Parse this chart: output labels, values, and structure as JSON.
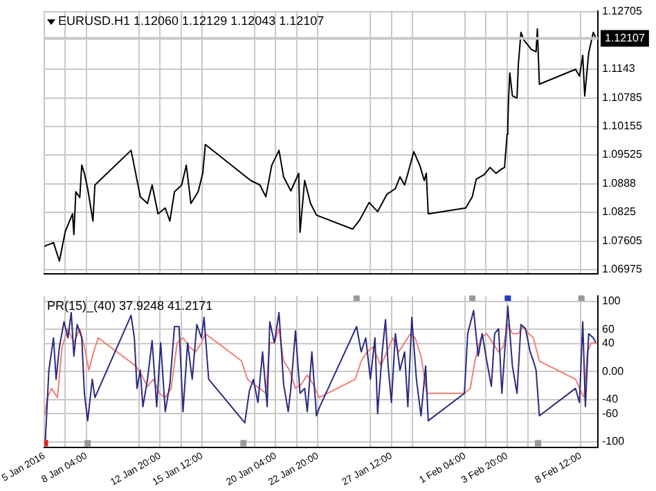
{
  "chart_data": [
    {
      "type": "line",
      "title": "EURUSD.H1 1.12060 1.12129 1.12043 1.12107",
      "xlim": [
        "2016-01-05T12:00",
        "2016-02-09T14:00"
      ],
      "ylim": [
        1.0687,
        1.1272
      ],
      "xticks": [
        {
          "value": "2016-01-05T12:00",
          "label": null
        },
        {
          "value": "2016-01-06T20:00",
          "label": null
        },
        {
          "value": "2016-01-08T04:00",
          "label": null
        },
        {
          "value": "2016-01-11T12:00",
          "label": null
        },
        {
          "value": "2016-01-12T20:00",
          "label": null
        },
        {
          "value": "2016-01-14T04:00",
          "label": null
        },
        {
          "value": "2016-01-15T12:00",
          "label": null
        },
        {
          "value": "2016-01-18T20:00",
          "label": null
        },
        {
          "value": "2016-01-20T04:00",
          "label": null
        },
        {
          "value": "2016-01-21T12:00",
          "label": null
        },
        {
          "value": "2016-01-22T20:00",
          "label": null
        },
        {
          "value": "2016-01-26T04:00",
          "label": null
        },
        {
          "value": "2016-01-27T12:00",
          "label": null
        },
        {
          "value": "2016-01-28T20:00",
          "label": null
        },
        {
          "value": "2016-02-01T04:00",
          "label": null
        },
        {
          "value": "2016-02-02T12:00",
          "label": null
        },
        {
          "value": "2016-02-03T20:00",
          "label": null
        },
        {
          "value": "2016-02-05T04:00",
          "label": null
        },
        {
          "value": "2016-02-08T12:00",
          "label": null
        }
      ],
      "yticks": [
        1.06975,
        1.07605,
        1.0825,
        1.0888,
        1.09525,
        1.10155,
        1.10785,
        1.1143,
        1.12705
      ],
      "grid": true,
      "tick_labels": "y",
      "ref_lines": [
        {
          "axis": "y",
          "value": 1.12107,
          "label": "1.12107",
          "color": "#c8c8c8"
        }
      ],
      "series": [
        {
          "color": "#000000",
          "x": [
            "2016-01-05T12:00",
            "2016-01-06T02:00",
            "2016-01-06T11:00",
            "2016-01-06T20:00",
            "2016-01-07T07:00",
            "2016-01-07T09:00",
            "2016-01-07T12:00",
            "2016-01-07T18:00",
            "2016-01-07T21:00",
            "2016-01-08T01:00",
            "2016-01-08T06:00",
            "2016-01-08T14:00",
            "2016-01-08T17:00",
            "2016-01-11T00:00",
            "2016-01-11T07:00",
            "2016-01-11T14:00",
            "2016-01-12T01:00",
            "2016-01-12T08:00",
            "2016-01-12T17:00",
            "2016-01-13T04:00",
            "2016-01-13T11:00",
            "2016-01-13T18:00",
            "2016-01-14T05:00",
            "2016-01-14T12:00",
            "2016-01-14T19:00",
            "2016-01-15T06:00",
            "2016-01-15T13:00",
            "2016-01-15T17:00",
            "2016-01-18T00:00",
            "2016-01-18T14:00",
            "2016-01-19T04:00",
            "2016-01-19T13:00",
            "2016-01-19T22:00",
            "2016-01-20T09:00",
            "2016-01-20T16:00",
            "2016-01-21T03:00",
            "2016-01-21T15:00",
            "2016-01-21T17:00",
            "2016-01-22T00:00",
            "2016-01-22T09:00",
            "2016-01-22T18:00",
            "2016-01-25T01:00",
            "2016-01-25T12:00",
            "2016-01-26T02:00",
            "2016-01-26T15:00",
            "2016-01-27T05:00",
            "2016-01-27T18:00",
            "2016-01-28T01:00",
            "2016-01-28T08:00",
            "2016-01-28T15:00",
            "2016-01-28T22:00",
            "2016-01-29T07:00",
            "2016-01-29T14:00",
            "2016-01-29T17:00",
            "2016-01-29T20:00",
            "2016-02-01T05:00",
            "2016-02-01T15:00",
            "2016-02-01T21:00",
            "2016-02-02T09:00",
            "2016-02-02T18:00",
            "2016-02-03T03:00",
            "2016-02-03T12:00",
            "2016-02-03T16:00",
            "2016-02-03T20:00",
            "2016-02-03T21:00",
            "2016-02-03T22:00",
            "2016-02-04T00:00",
            "2016-02-04T04:00",
            "2016-02-04T11:00",
            "2016-02-04T13:00",
            "2016-02-04T17:00",
            "2016-02-04T22:00",
            "2016-02-05T09:00",
            "2016-02-05T16:00",
            "2016-02-05T18:00",
            "2016-02-05T21:00",
            "2016-02-08T04:00",
            "2016-02-08T10:00",
            "2016-02-08T15:00",
            "2016-02-08T18:00",
            "2016-02-09T00:00",
            "2016-02-09T07:00",
            "2016-02-09T11:00"
          ],
          "values": [
            1.0749,
            1.0757,
            1.0716,
            1.0782,
            1.0821,
            1.0775,
            1.087,
            1.0857,
            1.0929,
            1.0911,
            1.0877,
            1.0805,
            1.0885,
            1.0962,
            1.0911,
            1.0859,
            1.0844,
            1.0885,
            1.0821,
            1.0834,
            1.0805,
            1.087,
            1.0885,
            1.0929,
            1.0844,
            1.087,
            1.0911,
            1.0975,
            1.0911,
            1.0895,
            1.0885,
            1.0859,
            1.0929,
            1.0962,
            1.0903,
            1.0872,
            1.0911,
            1.078,
            1.0895,
            1.0844,
            1.0818,
            1.0787,
            1.0808,
            1.0846,
            1.0826,
            1.0864,
            1.0877,
            1.0903,
            1.0885,
            1.0921,
            1.0959,
            1.0929,
            1.0895,
            1.0911,
            1.0821,
            1.0834,
            1.0859,
            1.0898,
            1.0908,
            1.0924,
            1.0911,
            1.0921,
            1.0924,
            1.0998,
            1.1014,
            1.107,
            1.1134,
            1.1083,
            1.1078,
            1.1152,
            1.1224,
            1.1206,
            1.1186,
            1.1181,
            1.1232,
            1.1109,
            1.1142,
            1.1127,
            1.1173,
            1.1083,
            1.1178,
            1.1224,
            1.1211
          ]
        }
      ]
    },
    {
      "type": "line",
      "title": "PR(15)_(40) 37.9248 41.2171",
      "xlim": [
        "2016-01-05T12:00",
        "2016-02-09T14:00"
      ],
      "ylim": [
        -108,
        108
      ],
      "xticks": [
        {
          "value": "2016-01-05T12:00",
          "label": "5 Jan 2016"
        },
        {
          "value": "2016-01-06T20:00",
          "label": null
        },
        {
          "value": "2016-01-08T04:00",
          "label": "8 Jan 04:00"
        },
        {
          "value": "2016-01-11T12:00",
          "label": null
        },
        {
          "value": "2016-01-12T20:00",
          "label": "12 Jan 20:00"
        },
        {
          "value": "2016-01-14T04:00",
          "label": null
        },
        {
          "value": "2016-01-15T12:00",
          "label": "15 Jan 12:00"
        },
        {
          "value": "2016-01-18T20:00",
          "label": null
        },
        {
          "value": "2016-01-20T04:00",
          "label": "20 Jan 04:00"
        },
        {
          "value": "2016-01-21T12:00",
          "label": null
        },
        {
          "value": "2016-01-22T20:00",
          "label": "22 Jan 20:00"
        },
        {
          "value": "2016-01-26T04:00",
          "label": null
        },
        {
          "value": "2016-01-27T12:00",
          "label": "27 Jan 12:00"
        },
        {
          "value": "2016-01-28T20:00",
          "label": null
        },
        {
          "value": "2016-02-01T04:00",
          "label": "1 Feb 04:00"
        },
        {
          "value": "2016-02-02T12:00",
          "label": null
        },
        {
          "value": "2016-02-03T20:00",
          "label": "3 Feb 20:00"
        },
        {
          "value": "2016-02-05T04:00",
          "label": null
        },
        {
          "value": "2016-02-08T12:00",
          "label": "8 Feb 12:00"
        }
      ],
      "yticks": [
        -100,
        -60,
        -40,
        {
          "value": 0,
          "label": "0.00"
        },
        40,
        60,
        100
      ],
      "grid": true,
      "series": [
        {
          "color": "#2a2a80",
          "x": [
            "2016-01-05T12:00",
            "2016-01-05T14:00",
            "2016-01-05T19:00",
            "2016-01-06T02:00",
            "2016-01-06T06:00",
            "2016-01-06T11:00",
            "2016-01-06T18:00",
            "2016-01-07T00:00",
            "2016-01-07T05:00",
            "2016-01-07T09:00",
            "2016-01-07T14:00",
            "2016-01-07T21:00",
            "2016-01-08T01:00",
            "2016-01-08T06:00",
            "2016-01-08T13:00",
            "2016-01-08T17:00",
            "2016-01-11T00:00",
            "2016-01-11T05:00",
            "2016-01-11T09:00",
            "2016-01-11T14:00",
            "2016-01-11T18:00",
            "2016-01-12T01:00",
            "2016-01-12T08:00",
            "2016-01-12T15:00",
            "2016-01-12T21:00",
            "2016-01-13T04:00",
            "2016-01-13T11:00",
            "2016-01-13T18:00",
            "2016-01-14T01:00",
            "2016-01-14T07:00",
            "2016-01-14T14:00",
            "2016-01-14T21:00",
            "2016-01-15T04:00",
            "2016-01-15T11:00",
            "2016-01-15T15:00",
            "2016-01-15T22:00",
            "2016-01-18T05:00",
            "2016-01-18T12:00",
            "2016-01-18T18:00",
            "2016-01-19T01:00",
            "2016-01-19T08:00",
            "2016-01-19T15:00",
            "2016-01-19T19:00",
            "2016-01-20T02:00",
            "2016-01-20T09:00",
            "2016-01-20T16:00",
            "2016-01-20T23:00",
            "2016-01-21T03:00",
            "2016-01-21T10:00",
            "2016-01-21T17:00",
            "2016-01-22T00:00",
            "2016-01-22T04:00",
            "2016-01-22T11:00",
            "2016-01-22T18:00",
            "2016-01-22T23:00",
            "2016-01-25T07:00",
            "2016-01-25T14:00",
            "2016-01-25T21:00",
            "2016-01-26T04:00",
            "2016-01-26T11:00",
            "2016-01-26T15:00",
            "2016-01-26T22:00",
            "2016-01-27T03:00",
            "2016-01-27T07:00",
            "2016-01-27T12:00",
            "2016-01-27T18:00",
            "2016-01-28T01:00",
            "2016-01-28T08:00",
            "2016-01-28T13:00",
            "2016-01-28T19:00",
            "2016-01-29T02:00",
            "2016-01-29T09:00",
            "2016-01-29T16:00",
            "2016-01-29T20:00",
            "2016-02-01T03:00",
            "2016-02-01T08:00",
            "2016-02-01T17:00",
            "2016-02-02T00:00",
            "2016-02-02T06:00",
            "2016-02-02T13:00",
            "2016-02-02T20:00",
            "2016-02-03T01:00",
            "2016-02-03T07:00",
            "2016-02-03T12:00",
            "2016-02-03T21:00",
            "2016-02-04T04:00",
            "2016-02-04T11:00",
            "2016-02-04T17:00",
            "2016-02-05T00:00",
            "2016-02-05T07:00",
            "2016-02-05T12:00",
            "2016-02-05T16:00",
            "2016-02-05T21:00",
            "2016-02-08T04:00",
            "2016-02-08T10:00",
            "2016-02-08T15:00",
            "2016-02-08T19:00",
            "2016-02-09T00:00",
            "2016-02-09T07:00",
            "2016-02-09T11:00"
          ],
          "values": [
            -96,
            -90,
            2,
            48,
            -11,
            35,
            71,
            48,
            84,
            22,
            67,
            48,
            -31,
            -70,
            -11,
            -37,
            80,
            48,
            -24,
            2,
            -50,
            -11,
            44,
            -50,
            41,
            -57,
            -18,
            64,
            64,
            -57,
            41,
            -11,
            67,
            48,
            77,
            -11,
            -73,
            -27,
            -11,
            -44,
            28,
            -50,
            71,
            41,
            84,
            -18,
            -57,
            -24,
            58,
            -31,
            -24,
            -57,
            28,
            -63,
            -50,
            64,
            28,
            48,
            -11,
            48,
            -60,
            28,
            74,
            8,
            -44,
            54,
            2,
            28,
            -50,
            77,
            -11,
            -63,
            8,
            -70,
            -31,
            54,
            87,
            22,
            54,
            15,
            -21,
            54,
            61,
            -31,
            93,
            8,
            -31,
            67,
            61,
            28,
            15,
            2,
            -63,
            -24,
            -44,
            71,
            -50,
            54,
            48,
            41
          ]
        },
        {
          "color": "#f08078",
          "x": [
            "2016-01-05T12:00",
            "2016-01-05T17:00",
            "2016-01-05T23:00",
            "2016-01-06T08:00",
            "2016-01-06T15:00",
            "2016-01-07T00:00",
            "2016-01-07T09:00",
            "2016-01-07T18:00",
            "2016-01-08T01:00",
            "2016-01-08T08:00",
            "2016-01-08T15:00",
            "2016-01-08T22:00",
            "2016-01-11T07:00",
            "2016-01-11T16:00",
            "2016-01-12T01:00",
            "2016-01-12T10:00",
            "2016-01-12T19:00",
            "2016-01-13T04:00",
            "2016-01-13T13:00",
            "2016-01-13T22:00",
            "2016-01-14T07:00",
            "2016-01-14T17:00",
            "2016-01-15T02:00",
            "2016-01-15T11:00",
            "2016-01-15T17:00",
            "2016-01-18T00:00",
            "2016-01-18T09:00",
            "2016-01-18T18:00",
            "2016-01-19T04:00",
            "2016-01-19T13:00",
            "2016-01-19T19:00",
            "2016-01-20T02:00",
            "2016-01-20T09:00",
            "2016-01-20T16:00",
            "2016-01-21T01:00",
            "2016-01-21T10:00",
            "2016-01-21T19:00",
            "2016-01-22T04:00",
            "2016-01-22T13:00",
            "2016-01-22T22:00",
            "2016-01-25T05:00",
            "2016-01-25T14:00",
            "2016-01-25T23:00",
            "2016-01-26T08:00",
            "2016-01-26T20:00",
            "2016-01-27T05:00",
            "2016-01-27T14:00",
            "2016-01-27T23:00",
            "2016-01-28T08:00",
            "2016-01-28T17:00",
            "2016-01-29T00:00",
            "2016-01-29T09:00",
            "2016-01-29T18:00",
            "2016-02-01T03:00",
            "2016-02-01T12:00",
            "2016-02-01T19:00",
            "2016-02-02T04:00",
            "2016-02-02T13:00",
            "2016-02-02T22:00",
            "2016-02-03T07:00",
            "2016-02-03T14:00",
            "2016-02-03T21:00",
            "2016-02-04T04:00",
            "2016-02-04T13:00",
            "2016-02-04T20:00",
            "2016-02-05T05:00",
            "2016-02-05T12:00",
            "2016-02-05T21:00",
            "2016-02-08T04:00",
            "2016-02-08T10:00",
            "2016-02-08T17:00",
            "2016-02-08T22:00",
            "2016-02-09T04:00",
            "2016-02-09T11:00"
          ],
          "values": [
            -63,
            -37,
            -24,
            -37,
            35,
            61,
            41,
            61,
            35,
            2,
            28,
            48,
            8,
            -5,
            -21,
            -11,
            -31,
            -37,
            -24,
            41,
            48,
            35,
            28,
            41,
            54,
            15,
            -11,
            -18,
            -24,
            -31,
            41,
            41,
            61,
            15,
            2,
            -24,
            -18,
            -5,
            -18,
            -37,
            -11,
            15,
            28,
            35,
            8,
            28,
            48,
            28,
            41,
            54,
            48,
            22,
            -31,
            -31,
            -24,
            15,
            48,
            54,
            41,
            28,
            35,
            67,
            54,
            54,
            64,
            54,
            48,
            15,
            -11,
            -24,
            -37,
            28,
            41,
            41
          ]
        },
        {
          "type": "scatter",
          "marker": "square",
          "color": "#999999",
          "x": [
            "2016-01-25T07:00",
            "2016-02-01T15:00",
            "2016-02-08T13:00",
            "2016-01-08T06:00",
            "2016-01-18T03:00",
            "2016-02-05T19:00"
          ],
          "values": [
            105,
            105,
            105,
            -102,
            -102,
            -102
          ]
        },
        {
          "type": "scatter",
          "marker": "square",
          "color": "#1f3fbf",
          "x": [
            "2016-02-03T21:00"
          ],
          "values": [
            105
          ]
        },
        {
          "type": "scatter",
          "marker": "square",
          "color": "#e02020",
          "x": [
            "2016-01-05T13:00"
          ],
          "values": [
            -102
          ]
        }
      ]
    }
  ]
}
